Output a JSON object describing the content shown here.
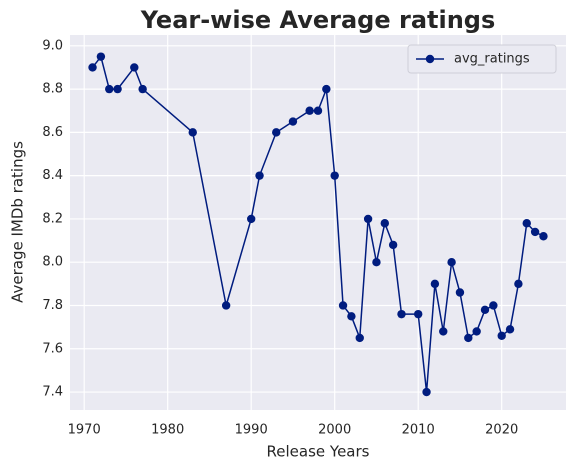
{
  "chart_data": {
    "type": "line",
    "title": "Year-wise Average ratings",
    "xlabel": "Release Years",
    "ylabel": "Average IMDb ratings",
    "x": [
      1971,
      1972,
      1973,
      1974,
      1976,
      1977,
      1983,
      1987,
      1990,
      1991,
      1993,
      1995,
      1997,
      1998,
      1999,
      2000,
      2001,
      2002,
      2003,
      2004,
      2005,
      2006,
      2007,
      2008,
      2010,
      2011,
      2012,
      2013,
      2014,
      2015,
      2016,
      2017,
      2018,
      2019,
      2020,
      2021,
      2022,
      2023,
      2024,
      2025
    ],
    "series": [
      {
        "name": "avg_ratings",
        "color": "#001c7f",
        "values": [
          8.9,
          8.95,
          8.8,
          8.8,
          8.9,
          8.8,
          8.6,
          7.8,
          8.2,
          8.4,
          8.6,
          8.65,
          8.7,
          8.7,
          8.8,
          8.4,
          7.8,
          7.75,
          7.65,
          8.2,
          8.0,
          8.18,
          8.08,
          7.76,
          7.76,
          7.4,
          7.9,
          7.68,
          8.0,
          7.86,
          7.65,
          7.68,
          7.78,
          7.8,
          7.66,
          7.69,
          7.9,
          8.18,
          8.14,
          8.12
        ]
      }
    ],
    "xlim": [
      1968.3,
      2027.7
    ],
    "ylim": [
      7.317,
      9.05
    ],
    "xticks": [
      1970,
      1980,
      1990,
      2000,
      2010,
      2020
    ],
    "yticks": [
      7.4,
      7.6,
      7.8,
      {
        "value": 8,
        "label": "8.0"
      },
      8.2,
      8.4,
      8.6,
      8.8,
      {
        "value": 9,
        "label": "9.0"
      }
    ],
    "grid": true,
    "legend": "upper right"
  }
}
